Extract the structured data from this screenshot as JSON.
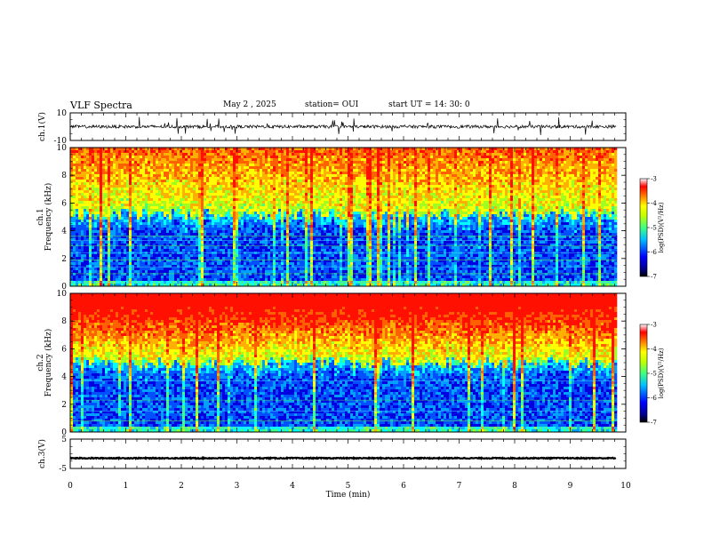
{
  "header": {
    "title": "VLF Spectra",
    "date": "May 2 , 2025",
    "station": "station= OUI",
    "start": "start UT = 14: 30: 0"
  },
  "chart_data": [
    {
      "type": "line",
      "panel": "ch1-waveform",
      "ylabel": "ch.1(V)",
      "ylim": [
        -10,
        10
      ],
      "yticks": [
        "10",
        "-10"
      ],
      "description_of_signal": "noisy waveform centered near 0 V",
      "baseline": 0
    },
    {
      "type": "heatmap",
      "panel": "ch1-spectrogram",
      "ylabel_lines": [
        "ch.1",
        "Frequency (kHz)"
      ],
      "ylim": [
        0,
        10
      ],
      "yticks": [
        "0",
        "2",
        "4",
        "6",
        "8",
        "10"
      ],
      "colorbar": {
        "label": "log(PSD)(V²/Hz)",
        "range": [
          -7,
          -3
        ],
        "ticks": [
          "-3",
          "-4",
          "-5",
          "-6",
          "-7"
        ]
      },
      "boundary_khz": 5.2,
      "hot_fraction": 0.15
    },
    {
      "type": "heatmap",
      "panel": "ch2-spectrogram",
      "ylabel_lines": [
        "ch.2",
        "Frequency (kHz)"
      ],
      "ylim": [
        0,
        10
      ],
      "yticks": [
        "0",
        "2",
        "4",
        "6",
        "8",
        "10"
      ],
      "colorbar": {
        "label": "log(PSD)(V²/Hz)",
        "range": [
          -7,
          -3
        ],
        "ticks": [
          "-3",
          "-4",
          "-5",
          "-6",
          "-7"
        ]
      },
      "boundary_khz": 5.0,
      "hot_fraction": 0.7
    },
    {
      "type": "line",
      "panel": "ch3-waveform",
      "ylabel": "ch.3(V)",
      "ylim": [
        -5,
        5
      ],
      "yticks": [
        "5",
        "-5"
      ],
      "baseline": -1.5
    }
  ],
  "xaxis": {
    "label": "Time (min)",
    "range": [
      0,
      10
    ],
    "ticks": [
      "0",
      "1",
      "2",
      "3",
      "4",
      "5",
      "6",
      "7",
      "8",
      "9",
      "10"
    ],
    "data_end": 9.82
  },
  "colors": {
    "jet": [
      "#00008f",
      "#0000ff",
      "#0080ff",
      "#00ffff",
      "#80ff80",
      "#ffff00",
      "#ff8000",
      "#ff0000",
      "#800000"
    ]
  }
}
